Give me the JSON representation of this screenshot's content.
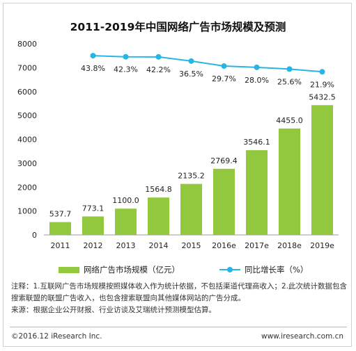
{
  "chart_data": {
    "type": "bar",
    "title": "2011-2019年中国网络广告市场规模及预测",
    "categories": [
      "2011",
      "2012",
      "2013",
      "2014",
      "2015",
      "2016e",
      "2017e",
      "2018e",
      "2019e"
    ],
    "series": [
      {
        "name": "网络广告市场规模（亿元）",
        "type": "bar",
        "color": "#92c83e",
        "values": [
          537.7,
          773.1,
          1100.0,
          1564.8,
          2135.2,
          2769.4,
          3546.1,
          4455.0,
          5432.5
        ],
        "labels": [
          "537.7",
          "773.1",
          "1100.0",
          "1564.8",
          "2135.2",
          "2769.4",
          "3546.1",
          "4455.0",
          "5432.5"
        ]
      },
      {
        "name": "同比增长率（%）",
        "type": "line",
        "color": "#27b5e3",
        "values": [
          null,
          43.8,
          42.3,
          42.2,
          36.5,
          29.7,
          28.0,
          25.6,
          21.9
        ],
        "labels": [
          "",
          "43.8%",
          "42.3%",
          "42.2%",
          "36.5%",
          "29.7%",
          "28.0%",
          "25.6%",
          "21.9%"
        ]
      }
    ],
    "ylim": [
      0,
      8000
    ],
    "yticks": [
      "0",
      "1000",
      "2000",
      "3000",
      "4000",
      "5000",
      "6000",
      "7000",
      "8000"
    ],
    "y2lim": [
      -200,
      60
    ],
    "legend": "bottom"
  },
  "notes": [
    "注释：1.互联网广告市场规模按照媒体收入作为统计依据，不包括渠道代理商收入；2.此次统计数据包含搜索联盟的联盟广告收入，也包含搜索联盟向其他媒体网站的广告分成。",
    "来源：根据企业公开财报、行业访谈及艾瑞统计预测模型估算。"
  ],
  "footer": {
    "left": "©2016.12 iResearch Inc.",
    "right": "www.iresearch.com.cn"
  }
}
